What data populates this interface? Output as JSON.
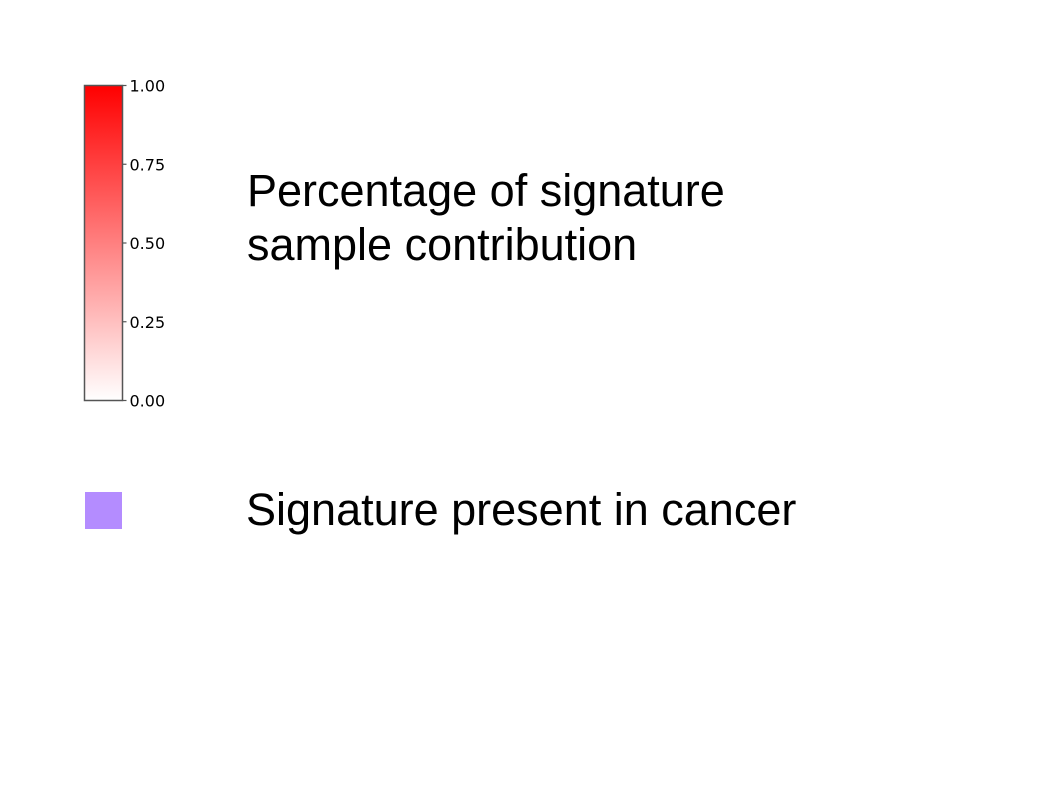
{
  "chart_data": {
    "type": "heatmap",
    "legend_only": true,
    "colorbar": {
      "title_lines": [
        "Percentage of signature",
        "sample contribution"
      ],
      "range": [
        0,
        1
      ],
      "ticks": [
        0,
        0.25,
        0.5,
        0.75,
        1
      ],
      "tick_labels": [
        "0.00",
        "0.25",
        "0.50",
        "0.75",
        "1.00"
      ],
      "color_low": "#ffffff",
      "color_high": "#ff0000",
      "outline_color": "#555555"
    },
    "categorical_legend": {
      "label": "Signature present in cancer",
      "color": "#b48cff"
    }
  }
}
